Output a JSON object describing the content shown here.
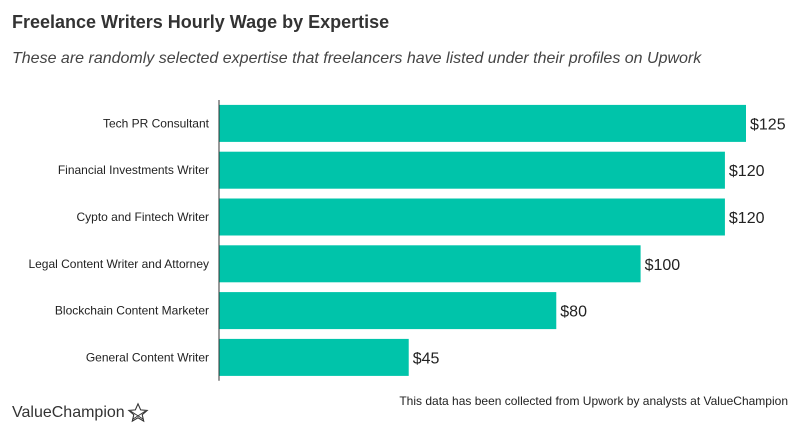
{
  "header": {
    "title": "Freelance Writers Hourly Wage by Expertise",
    "subtitle": "These are randomly selected expertise that freelancers have listed under their profiles on Upwork"
  },
  "footer": {
    "source": "This data has been collected from Upwork by analysts at ValueChampion",
    "logo_text": "ValueChampion"
  },
  "colors": {
    "bar": "#00c4aa",
    "axis": "#333333"
  },
  "chart_data": {
    "type": "bar",
    "orientation": "horizontal",
    "title": "Freelance Writers Hourly Wage by Expertise",
    "categories": [
      "Tech PR Consultant",
      "Financial Investments Writer",
      "Cypto and Fintech Writer",
      "Legal Content Writer and Attorney",
      "Blockchain Content Marketer",
      "General Content Writer"
    ],
    "values": [
      125,
      120,
      120,
      100,
      80,
      45
    ],
    "labels": [
      "$125",
      "$120",
      "$120",
      "$100",
      "$80",
      "$45"
    ],
    "xlim": [
      0,
      125
    ],
    "grid": false
  }
}
